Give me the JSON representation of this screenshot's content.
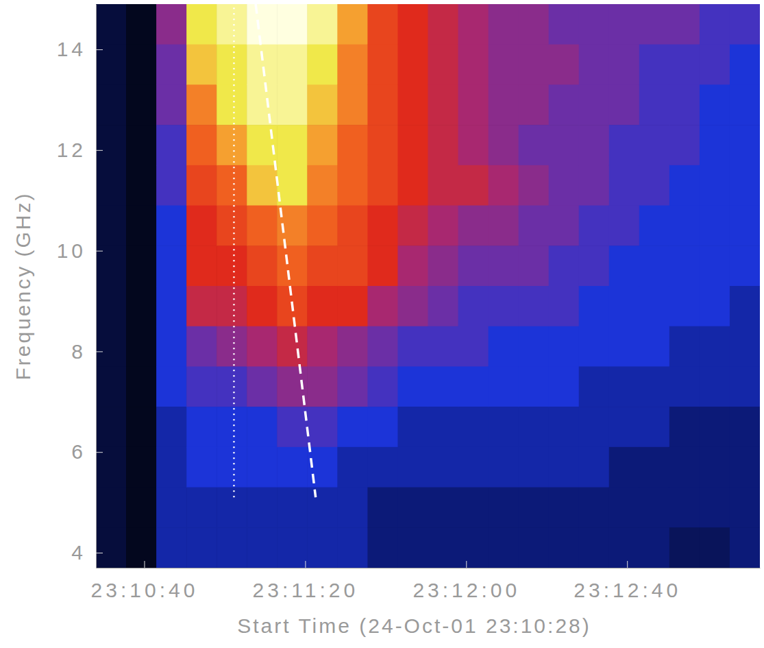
{
  "chart_data": {
    "type": "heatmap",
    "x_label": "Start Time (24-Oct-01 23:10:28)",
    "y_label": "Frequency (GHz)",
    "xlim": [
      0,
      165
    ],
    "ylim": [
      3.7,
      14.9
    ],
    "xticks": [
      {
        "value": 12,
        "label": "23:10:40"
      },
      {
        "value": 52,
        "label": "23:11:20"
      },
      {
        "value": 92,
        "label": "23:12:00"
      },
      {
        "value": 132,
        "label": "23:12:40"
      }
    ],
    "yticks": [
      4,
      6,
      8,
      10,
      12,
      14
    ],
    "x_bins": [
      0,
      7.5,
      15,
      22.5,
      30,
      37.5,
      45,
      52.5,
      60,
      67.5,
      75,
      82.5,
      90,
      97.5,
      105,
      112.5,
      120,
      127.5,
      135,
      142.5,
      150,
      157.5,
      165
    ],
    "y_bins": [
      14.9,
      14.1,
      13.3,
      12.5,
      11.7,
      10.9,
      10.1,
      9.3,
      8.5,
      7.7,
      6.9,
      6.1,
      5.3,
      4.5,
      3.7
    ],
    "zlim": [
      0,
      10
    ],
    "z": [
      [
        1,
        1,
        1,
        1,
        1,
        1,
        1,
        1,
        1,
        1,
        1,
        1,
        1,
        1
      ],
      [
        0.5,
        0.5,
        0.5,
        0.5,
        0.5,
        0.5,
        0.5,
        0.5,
        0.5,
        0.5,
        0.5,
        0.5,
        0.5,
        0.5
      ],
      [
        4.5,
        4,
        4,
        3.5,
        3.5,
        3,
        3,
        3,
        3,
        3,
        2.5,
        2.5,
        2.5,
        2.5
      ],
      [
        9,
        8.5,
        7.5,
        7,
        6.5,
        6,
        6,
        5.5,
        4,
        3.5,
        3,
        3,
        2.5,
        2.5
      ],
      [
        9.5,
        9,
        9,
        8,
        7,
        6.5,
        6,
        5.5,
        4.5,
        3.5,
        3,
        3,
        2.5,
        2.5
      ],
      [
        10,
        9.5,
        9.5,
        9,
        8.5,
        7,
        6.5,
        6,
        5,
        4,
        3,
        3,
        2.5,
        2.5
      ],
      [
        10,
        9.5,
        9.5,
        9,
        9,
        7.5,
        7,
        6.5,
        5.5,
        4.5,
        3.5,
        3,
        2.5,
        2.5
      ],
      [
        9.5,
        9,
        8.5,
        8,
        7.5,
        7,
        6.5,
        6,
        5,
        4.5,
        3.5,
        3,
        2.5,
        2.5
      ],
      [
        8,
        7.5,
        7.5,
        7,
        7,
        6.5,
        6.5,
        6,
        4.5,
        4,
        3,
        2.5,
        2.5,
        2.5
      ],
      [
        6.5,
        6.5,
        6.5,
        6.5,
        6.5,
        6,
        6,
        5,
        4,
        3.5,
        3,
        2.5,
        2,
        2
      ],
      [
        6,
        6,
        6,
        6,
        6,
        5.5,
        5,
        4.5,
        3.5,
        3,
        2.5,
        2.5,
        2,
        2
      ],
      [
        5.5,
        5.5,
        5.5,
        5.5,
        5.5,
        5,
        4.5,
        4,
        3.5,
        3,
        2.5,
        2.5,
        2,
        2
      ],
      [
        5,
        5,
        5,
        5,
        5.5,
        4.5,
        4,
        3.5,
        3.5,
        3,
        2.5,
        2.5,
        2,
        2
      ],
      [
        4.5,
        4.5,
        4.5,
        4.5,
        5,
        4.5,
        4,
        3.5,
        3,
        3,
        2.5,
        2.5,
        2,
        2
      ],
      [
        4.5,
        4.5,
        4.5,
        4,
        4.5,
        4,
        4,
        3.5,
        3,
        3,
        2.5,
        2.5,
        2,
        2
      ],
      [
        4,
        4.5,
        4,
        4,
        4,
        4,
        3.5,
        3.5,
        3,
        3,
        2.5,
        2.5,
        2,
        2
      ],
      [
        4,
        4,
        4,
        4,
        4,
        3.5,
        3.5,
        3,
        3,
        2.5,
        2.5,
        2.5,
        2,
        2
      ],
      [
        4,
        4,
        4,
        3.5,
        3.5,
        3.5,
        3,
        3,
        3,
        2.5,
        2.5,
        2,
        2,
        2
      ],
      [
        4,
        3.5,
        3.5,
        3.5,
        3.5,
        3,
        3,
        3,
        3,
        2.5,
        2.5,
        2,
        2,
        2
      ],
      [
        4,
        3.5,
        3.5,
        3.5,
        3,
        3,
        3,
        3,
        2.5,
        2.5,
        2,
        2,
        2,
        1.5
      ],
      [
        3.5,
        3.5,
        3,
        3,
        3,
        3,
        3,
        3,
        2.5,
        2.5,
        2,
        2,
        2,
        1.5
      ],
      [
        3.5,
        3,
        3,
        3,
        3,
        3,
        3,
        2.5,
        2.5,
        2.5,
        2,
        2,
        2,
        2
      ]
    ],
    "series": [
      {
        "type": "line",
        "x": [
          34.3,
          34.3
        ],
        "values": [
          5.1,
          14.9
        ],
        "line_style": "dotted",
        "color": "#ffffff"
      },
      {
        "type": "line",
        "x": [
          39.7,
          54.6
        ],
        "values": [
          14.9,
          5.1
        ],
        "line_style": "dashed",
        "color": "#ffffff"
      }
    ]
  }
}
